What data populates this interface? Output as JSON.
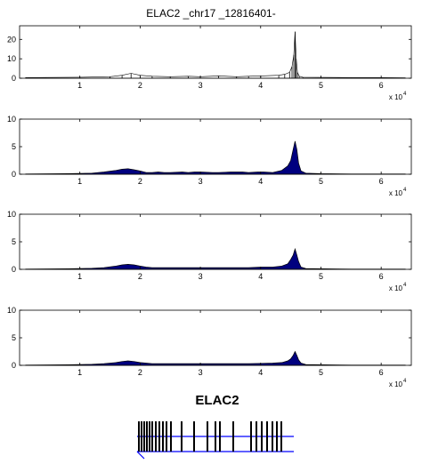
{
  "figure": {
    "title": "ELAC2 _chr17 _12816401-",
    "gene_label": "ELAC2",
    "x_multiplier": "x 10",
    "x_multiplier_exp": "4"
  },
  "colors": {
    "axes": "#000000",
    "fill": "#00007f",
    "line": "#000000",
    "intron_line": "#0000ff",
    "exon": "#000000"
  },
  "chart_data": [
    {
      "type": "area",
      "panel": "top",
      "xlim": [
        0,
        65000
      ],
      "ylim": [
        0,
        27
      ],
      "xticks": [
        10000,
        20000,
        30000,
        40000,
        50000,
        60000
      ],
      "xtick_labels": [
        "1",
        "2",
        "3",
        "4",
        "5",
        "6"
      ],
      "yticks": [
        0,
        10,
        20
      ],
      "ytick_labels": [
        "0",
        "10",
        "20"
      ],
      "series": [
        {
          "x": [
            1000,
            10000,
            15000,
            17000,
            18500,
            20000,
            22000,
            25000,
            28000,
            30000,
            33000,
            36000,
            38000,
            40000,
            43000,
            44000,
            44800,
            45200,
            45500,
            45700,
            45900,
            46100,
            46400,
            47000,
            50000,
            55000,
            60000,
            64000
          ],
          "values": [
            0.3,
            0.5,
            0.8,
            1.5,
            2.5,
            1.5,
            1.0,
            0.8,
            1.0,
            0.8,
            1.2,
            0.8,
            1.0,
            1.2,
            1.5,
            2.0,
            3.0,
            6.0,
            12.0,
            24.0,
            10.0,
            3.0,
            1.0,
            0.5,
            0.4,
            0.3,
            0.3,
            0.2
          ],
          "spikes": true
        }
      ]
    },
    {
      "type": "area",
      "panel": "second",
      "xlim": [
        0,
        65000
      ],
      "ylim": [
        0,
        10
      ],
      "xticks": [
        10000,
        20000,
        30000,
        40000,
        50000,
        60000
      ],
      "xtick_labels": [
        "1",
        "2",
        "3",
        "4",
        "5",
        "6"
      ],
      "yticks": [
        0,
        5,
        10
      ],
      "ytick_labels": [
        "0",
        "5",
        "10"
      ],
      "series": [
        {
          "x": [
            1000,
            8000,
            12000,
            14000,
            16000,
            17000,
            18000,
            19000,
            20000,
            21000,
            22000,
            23000,
            24000,
            25000,
            27000,
            28000,
            29000,
            30000,
            32000,
            33000,
            35000,
            37000,
            38000,
            39500,
            40500,
            42000,
            43500,
            44500,
            45000,
            45400,
            45700,
            46000,
            46300,
            46700,
            47500,
            50000,
            55000,
            60000,
            64000
          ],
          "values": [
            0.05,
            0.1,
            0.2,
            0.4,
            0.7,
            0.9,
            1.0,
            0.8,
            0.6,
            0.3,
            0.3,
            0.4,
            0.3,
            0.3,
            0.4,
            0.3,
            0.4,
            0.4,
            0.3,
            0.3,
            0.4,
            0.4,
            0.3,
            0.4,
            0.4,
            0.3,
            0.7,
            1.5,
            2.5,
            4.5,
            6.0,
            4.5,
            2.0,
            0.6,
            0.2,
            0.1,
            0.05,
            0.05,
            0.05
          ]
        }
      ]
    },
    {
      "type": "area",
      "panel": "third",
      "xlim": [
        0,
        65000
      ],
      "ylim": [
        0,
        10
      ],
      "xticks": [
        10000,
        20000,
        30000,
        40000,
        50000,
        60000
      ],
      "xtick_labels": [
        "1",
        "2",
        "3",
        "4",
        "5",
        "6"
      ],
      "yticks": [
        0,
        5,
        10
      ],
      "ytick_labels": [
        "0",
        "5",
        "10"
      ],
      "series": [
        {
          "x": [
            1000,
            8000,
            12000,
            14000,
            16000,
            17000,
            18000,
            19000,
            20000,
            21000,
            22000,
            24000,
            26000,
            28000,
            30000,
            32000,
            34000,
            36000,
            38000,
            40000,
            42000,
            43500,
            44500,
            45000,
            45400,
            45700,
            46000,
            46300,
            46700,
            47500,
            50000,
            55000,
            60000,
            64000
          ],
          "values": [
            0.05,
            0.1,
            0.2,
            0.3,
            0.6,
            0.8,
            0.9,
            0.8,
            0.6,
            0.4,
            0.3,
            0.3,
            0.3,
            0.3,
            0.3,
            0.3,
            0.3,
            0.3,
            0.3,
            0.4,
            0.4,
            0.6,
            1.0,
            1.8,
            2.6,
            3.7,
            2.6,
            1.4,
            0.4,
            0.15,
            0.1,
            0.05,
            0.05,
            0.05
          ]
        }
      ]
    },
    {
      "type": "area",
      "panel": "bottom",
      "xlim": [
        0,
        65000
      ],
      "ylim": [
        0,
        10
      ],
      "xticks": [
        10000,
        20000,
        30000,
        40000,
        50000,
        60000
      ],
      "xtick_labels": [
        "1",
        "2",
        "3",
        "4",
        "5",
        "6"
      ],
      "yticks": [
        0,
        5,
        10
      ],
      "ytick_labels": [
        "0",
        "5",
        "10"
      ],
      "series": [
        {
          "x": [
            1000,
            8000,
            12000,
            14000,
            16000,
            17000,
            18000,
            19000,
            20000,
            21000,
            22000,
            24000,
            26000,
            28000,
            30000,
            32000,
            34000,
            36000,
            38000,
            40000,
            42000,
            43500,
            44500,
            45000,
            45400,
            45700,
            46000,
            46300,
            46700,
            47500,
            50000,
            55000,
            60000,
            64000
          ],
          "values": [
            0.05,
            0.1,
            0.2,
            0.3,
            0.5,
            0.7,
            0.8,
            0.7,
            0.5,
            0.4,
            0.3,
            0.3,
            0.3,
            0.3,
            0.3,
            0.3,
            0.3,
            0.3,
            0.3,
            0.35,
            0.4,
            0.5,
            0.8,
            1.2,
            1.8,
            2.5,
            1.8,
            1.0,
            0.4,
            0.15,
            0.1,
            0.05,
            0.05,
            0.05
          ]
        }
      ]
    }
  ],
  "gene_model": {
    "exons": [
      1,
      2,
      3,
      4,
      5,
      6,
      7,
      8,
      9,
      10,
      11,
      12,
      13,
      14,
      15,
      16,
      17,
      18,
      19,
      20,
      21,
      22,
      23,
      24
    ]
  }
}
